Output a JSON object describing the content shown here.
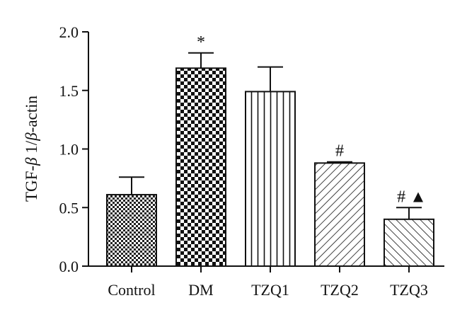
{
  "chart_data": {
    "type": "bar",
    "title": "",
    "xlabel": "",
    "ylabel_parts": [
      "TGF-",
      "β",
      " 1/",
      "β",
      "-actin"
    ],
    "ylim": [
      0,
      2.0
    ],
    "yticks": [
      "0.0",
      "0.5",
      "1.0",
      "1.5",
      "2.0"
    ],
    "categories": [
      "Control",
      "DM",
      "TZQ1",
      "TZQ2",
      "TZQ3"
    ],
    "values": [
      0.61,
      1.69,
      1.49,
      0.88,
      0.4
    ],
    "errors": [
      0.15,
      0.13,
      0.21,
      0.01,
      0.1
    ],
    "patterns": [
      "small-checker",
      "large-checker",
      "vertical-lines",
      "diagonal-lines",
      "back-diagonal-lines"
    ],
    "annotations": [
      "",
      "*",
      "",
      "#",
      "# ▲"
    ],
    "grid": false,
    "colors": {
      "stroke": "#111111",
      "fill_bg": "#ffffff"
    }
  }
}
